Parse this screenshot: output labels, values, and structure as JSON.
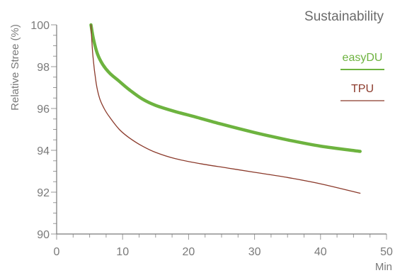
{
  "chart_data": {
    "type": "line",
    "title": "Sustainability",
    "xlabel": "Min",
    "ylabel": "Relative Stree (%)",
    "xlim": [
      0,
      50
    ],
    "ylim": [
      90,
      100
    ],
    "x_ticks": [
      "0",
      "10",
      "20",
      "30",
      "40",
      "50"
    ],
    "y_ticks": [
      "90",
      "92",
      "94",
      "96",
      "98",
      "100"
    ],
    "grid": false,
    "legend_position": "top-right",
    "series": [
      {
        "name": "easyDU",
        "color": "#6db33f",
        "x": [
          5.2,
          5.6,
          6.2,
          7,
          8,
          9.5,
          11,
          13,
          15,
          18,
          21,
          25,
          30,
          35,
          40,
          46
        ],
        "y": [
          100,
          99.3,
          98.6,
          98.1,
          97.7,
          97.3,
          96.9,
          96.45,
          96.15,
          95.85,
          95.6,
          95.25,
          94.85,
          94.5,
          94.2,
          93.95
        ]
      },
      {
        "name": "TPU",
        "color": "#8b3a2b",
        "x": [
          5.2,
          5.5,
          6,
          6.5,
          7.2,
          8,
          9.5,
          11,
          13,
          15,
          18,
          22,
          26,
          30,
          35,
          40,
          46
        ],
        "y": [
          100,
          98.5,
          97.2,
          96.5,
          96,
          95.6,
          95.0,
          94.6,
          94.2,
          93.9,
          93.6,
          93.35,
          93.15,
          92.95,
          92.7,
          92.4,
          91.95
        ]
      }
    ]
  }
}
